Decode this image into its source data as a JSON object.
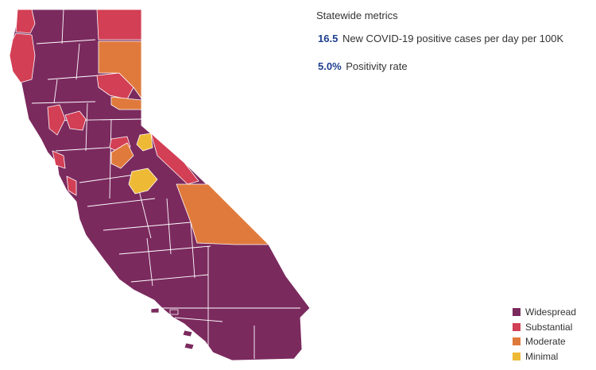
{
  "colors": {
    "widespread": "#7b2a5e",
    "substantial": "#d33f55",
    "moderate": "#e07a3c",
    "minimal": "#eeb935"
  },
  "metrics": {
    "title": "Statewide metrics",
    "cases_value": "16.5",
    "cases_label": "New COVID-19 positive cases per day per 100K",
    "positivity_value": "5.0%",
    "positivity_label": "Positivity rate"
  },
  "legend": [
    {
      "label": "Widespread",
      "tier": "widespread"
    },
    {
      "label": "Substantial",
      "tier": "substantial"
    },
    {
      "label": "Moderate",
      "tier": "moderate"
    },
    {
      "label": "Minimal",
      "tier": "minimal"
    }
  ]
}
